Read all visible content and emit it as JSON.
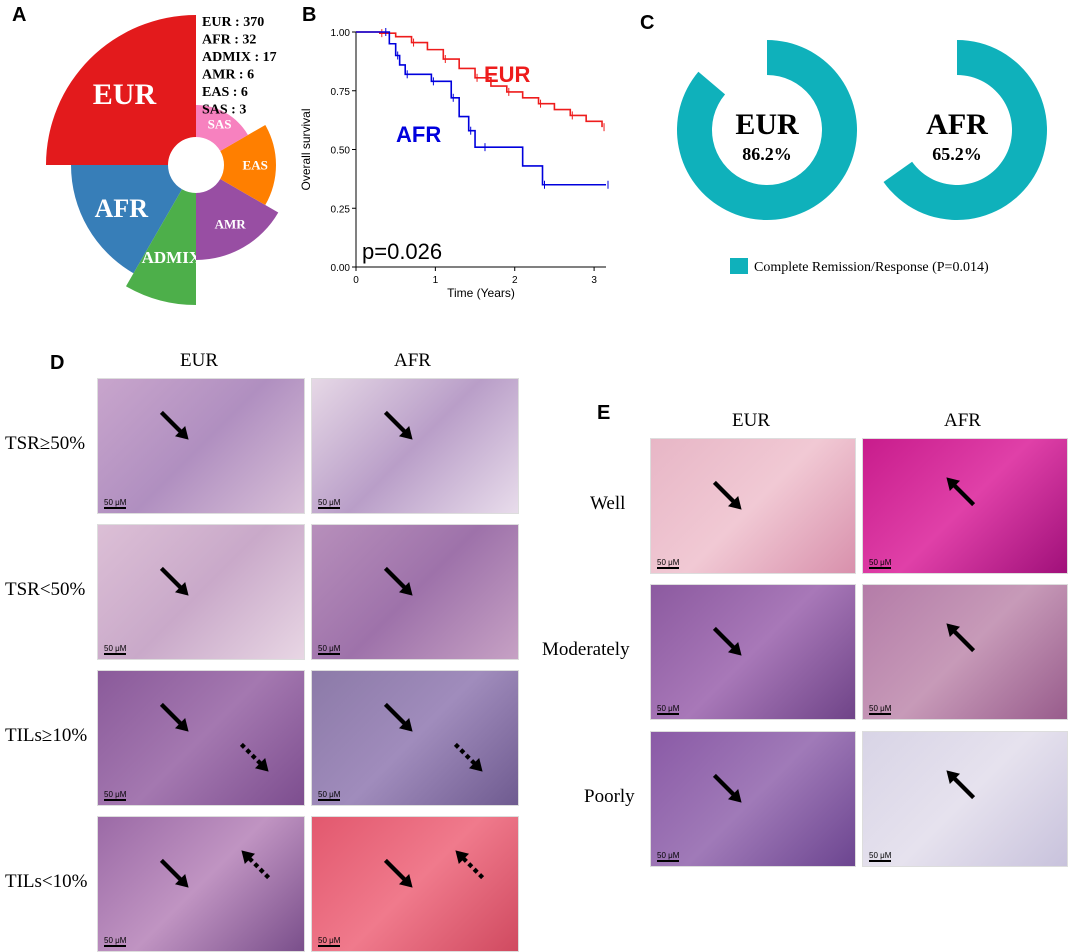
{
  "panels": {
    "a": {
      "letter": "A"
    },
    "b": {
      "letter": "B"
    },
    "c": {
      "letter": "C"
    },
    "d": {
      "letter": "D"
    },
    "e": {
      "letter": "E"
    }
  },
  "chart_data": [
    {
      "type": "pie",
      "panel": "A",
      "categories": [
        "EUR",
        "AFR",
        "ADMIX",
        "AMR",
        "EAS",
        "SAS"
      ],
      "values": [
        370,
        32,
        17,
        6,
        6,
        3
      ],
      "colors": [
        "#e31a1c",
        "#377eb8",
        "#4daf4a",
        "#984ea3",
        "#ff7f00",
        "#f781bf"
      ],
      "legend_lines": [
        "EUR : 370",
        "AFR : 32",
        "ADMIX : 17",
        "AMR : 6",
        "EAS : 6",
        "SAS : 3"
      ]
    },
    {
      "type": "line",
      "panel": "B",
      "xlabel": "Time (Years)",
      "ylabel": "Overall survival",
      "xlim": [
        0,
        3.15
      ],
      "ylim": [
        0,
        1
      ],
      "x_ticks": [
        0,
        1,
        2,
        3
      ],
      "y_ticks": [
        "0.00",
        "0.25",
        "0.50",
        "0.75",
        "1.00"
      ],
      "annotation": "p=0.026",
      "series": [
        {
          "name": "EUR",
          "color": "#ee1c1c",
          "x": [
            0,
            0.3,
            0.5,
            0.7,
            0.9,
            1.1,
            1.3,
            1.5,
            1.7,
            1.9,
            2.1,
            2.3,
            2.5,
            2.7,
            2.9,
            3.1
          ],
          "y": [
            1.0,
            0.995,
            0.98,
            0.955,
            0.925,
            0.885,
            0.845,
            0.805,
            0.77,
            0.745,
            0.72,
            0.695,
            0.67,
            0.645,
            0.62,
            0.595
          ]
        },
        {
          "name": "AFR",
          "color": "#0000dd",
          "x": [
            0,
            0.35,
            0.42,
            0.5,
            0.55,
            0.62,
            0.7,
            0.95,
            1.15,
            1.2,
            1.3,
            1.42,
            1.5,
            1.6,
            2.1,
            2.35,
            2.55,
            3.15
          ],
          "y": [
            1.0,
            1.0,
            0.95,
            0.9,
            0.86,
            0.82,
            0.82,
            0.79,
            0.79,
            0.72,
            0.64,
            0.58,
            0.51,
            0.51,
            0.43,
            0.35,
            0.35,
            0.35
          ]
        }
      ]
    },
    {
      "type": "pie",
      "panel": "C",
      "categories": [
        "EUR",
        "AFR"
      ],
      "values": [
        86.2,
        65.2
      ],
      "value_labels": [
        "86.2%",
        "65.2%"
      ],
      "legend": "Complete Remission/Response (P=0.014)",
      "color": "#0fb1bb"
    }
  ],
  "histology": {
    "d_columns": [
      "EUR",
      "AFR"
    ],
    "d_rows": [
      "TSR≥50%",
      "TSR<50%",
      "TILs≥10%",
      "TILs<10%"
    ],
    "e_columns": [
      "EUR",
      "AFR"
    ],
    "e_rows": [
      "Well",
      "Moderately",
      "Poorly"
    ],
    "scale_label": "50 μM"
  }
}
